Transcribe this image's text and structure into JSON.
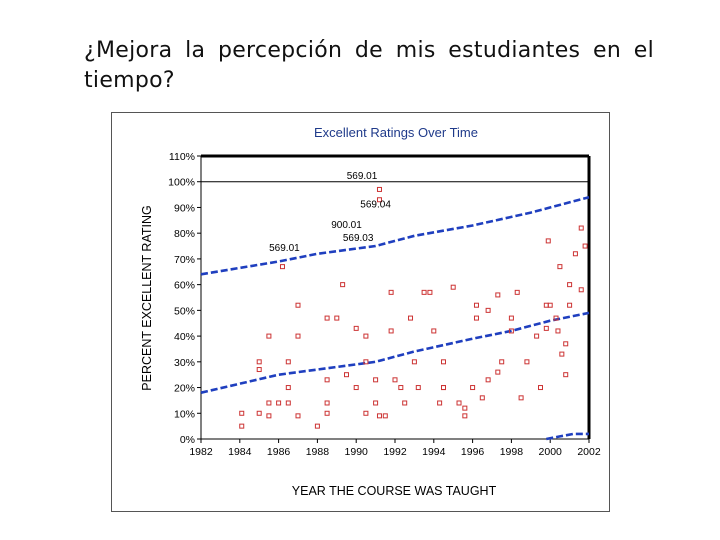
{
  "slide": {
    "title": "¿Mejora la percepción de mis estudiantes en el tiempo?"
  },
  "colors": {
    "trend": "#1f3fbf",
    "marker": "#cc3333",
    "axis": "#000000",
    "text_title": "#1f3a8a"
  },
  "chart_data": {
    "type": "scatter",
    "title": "Excellent Ratings Over Time",
    "xlabel": "YEAR THE COURSE WAS TAUGHT",
    "ylabel": "PERCENT EXCELLENT RATING",
    "xlim": [
      1982,
      2002
    ],
    "ylim": [
      0,
      110
    ],
    "x_ticks": [
      "1982",
      "1984",
      "1986",
      "1988",
      "1990",
      "1992",
      "1994",
      "1996",
      "1998",
      "2000",
      "2002"
    ],
    "y_ticks": [
      "0%",
      "10%",
      "20%",
      "30%",
      "40%",
      "50%",
      "60%",
      "70%",
      "80%",
      "90%",
      "100%",
      "110%"
    ],
    "reference_line": 100,
    "annotations": [
      {
        "text": "569.01",
        "x": 1990.3,
        "y": 101
      },
      {
        "text": "569.04",
        "x": 1991.0,
        "y": 90
      },
      {
        "text": "900.01",
        "x": 1989.5,
        "y": 82
      },
      {
        "text": "569.03",
        "x": 1990.1,
        "y": 77
      },
      {
        "text": "569.01",
        "x": 1986.3,
        "y": 73
      }
    ],
    "trend_lines": [
      {
        "name": "upper",
        "points": [
          [
            1982,
            64
          ],
          [
            1986,
            69
          ],
          [
            1988,
            72
          ],
          [
            1991,
            75
          ],
          [
            1993,
            79
          ],
          [
            1996,
            83
          ],
          [
            1999,
            88
          ],
          [
            2002,
            94
          ]
        ]
      },
      {
        "name": "middle",
        "points": [
          [
            1982,
            18
          ],
          [
            1986,
            25
          ],
          [
            1991,
            30
          ],
          [
            1993,
            34
          ],
          [
            1996,
            39
          ],
          [
            1998,
            42
          ],
          [
            2000,
            46
          ],
          [
            2002,
            49
          ]
        ]
      },
      {
        "name": "lower",
        "points": [
          [
            1999.8,
            0
          ],
          [
            2000.5,
            1
          ],
          [
            2001.2,
            2
          ],
          [
            2002,
            2
          ]
        ]
      }
    ],
    "points": [
      [
        1984.1,
        10
      ],
      [
        1984.1,
        5
      ],
      [
        1985.0,
        27
      ],
      [
        1985.0,
        30
      ],
      [
        1985.0,
        10
      ],
      [
        1985.5,
        40
      ],
      [
        1985.5,
        14
      ],
      [
        1985.5,
        9
      ],
      [
        1986.0,
        14
      ],
      [
        1986.5,
        20
      ],
      [
        1986.5,
        14
      ],
      [
        1986.5,
        30
      ],
      [
        1986.2,
        67
      ],
      [
        1987.0,
        9
      ],
      [
        1987.0,
        40
      ],
      [
        1987.0,
        52
      ],
      [
        1988.0,
        5
      ],
      [
        1988.5,
        23
      ],
      [
        1988.5,
        47
      ],
      [
        1988.5,
        10
      ],
      [
        1988.5,
        14
      ],
      [
        1989.0,
        47
      ],
      [
        1989.3,
        60
      ],
      [
        1989.5,
        25
      ],
      [
        1990.0,
        43
      ],
      [
        1990.0,
        20
      ],
      [
        1990.5,
        10
      ],
      [
        1990.5,
        30
      ],
      [
        1990.5,
        40
      ],
      [
        1991.0,
        14
      ],
      [
        1991.0,
        23
      ],
      [
        1991.2,
        9
      ],
      [
        1991.2,
        93
      ],
      [
        1991.2,
        97
      ],
      [
        1991.5,
        9
      ],
      [
        1991.8,
        42
      ],
      [
        1991.8,
        57
      ],
      [
        1992.0,
        23
      ],
      [
        1992.3,
        20
      ],
      [
        1992.5,
        14
      ],
      [
        1992.8,
        47
      ],
      [
        1993.0,
        30
      ],
      [
        1993.2,
        20
      ],
      [
        1993.5,
        57
      ],
      [
        1993.8,
        57
      ],
      [
        1994.0,
        42
      ],
      [
        1994.3,
        14
      ],
      [
        1994.5,
        20
      ],
      [
        1994.5,
        30
      ],
      [
        1994.5,
        20
      ],
      [
        1995.0,
        59
      ],
      [
        1995.3,
        14
      ],
      [
        1995.6,
        9
      ],
      [
        1995.6,
        12
      ],
      [
        1996.0,
        20
      ],
      [
        1996.2,
        47
      ],
      [
        1996.2,
        52
      ],
      [
        1996.5,
        16
      ],
      [
        1996.8,
        50
      ],
      [
        1996.8,
        23
      ],
      [
        1997.3,
        56
      ],
      [
        1997.3,
        26
      ],
      [
        1997.5,
        30
      ],
      [
        1998.0,
        47
      ],
      [
        1998.0,
        42
      ],
      [
        1998.3,
        57
      ],
      [
        1998.5,
        16
      ],
      [
        1998.8,
        30
      ],
      [
        1999.3,
        40
      ],
      [
        1999.5,
        20
      ],
      [
        1999.8,
        43
      ],
      [
        1999.8,
        52
      ],
      [
        1999.9,
        77
      ],
      [
        2000.0,
        52
      ],
      [
        2000.3,
        47
      ],
      [
        2000.4,
        42
      ],
      [
        2000.5,
        67
      ],
      [
        2000.6,
        33
      ],
      [
        2000.8,
        37
      ],
      [
        2000.8,
        25
      ],
      [
        2001.0,
        60
      ],
      [
        2001.0,
        52
      ],
      [
        2001.3,
        72
      ],
      [
        2001.6,
        82
      ],
      [
        2001.6,
        58
      ],
      [
        2001.8,
        75
      ]
    ]
  }
}
